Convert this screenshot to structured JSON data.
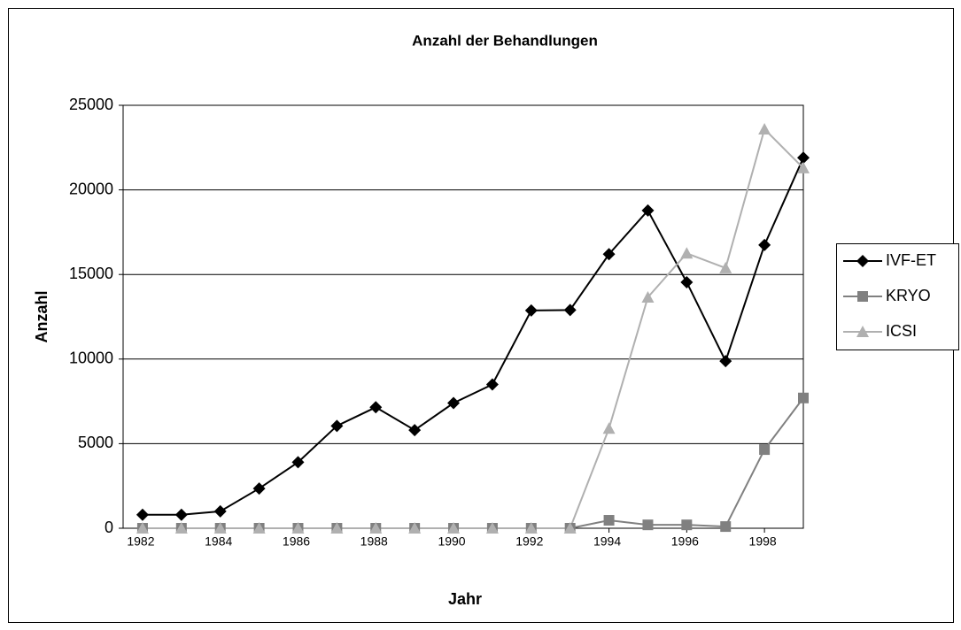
{
  "chart_data": {
    "type": "line",
    "title": "Anzahl der Behandlungen",
    "xlabel": "Jahr",
    "ylabel": "Anzahl",
    "x": [
      1982,
      1983,
      1984,
      1985,
      1986,
      1987,
      1988,
      1989,
      1990,
      1991,
      1992,
      1993,
      1994,
      1995,
      1996,
      1997,
      1998,
      1999
    ],
    "xlim": [
      1981.5,
      1999
    ],
    "xticks": [
      1982,
      1984,
      1986,
      1988,
      1990,
      1992,
      1994,
      1996,
      1998
    ],
    "ylim": [
      0,
      25000
    ],
    "yticks": [
      0,
      5000,
      10000,
      15000,
      20000,
      25000
    ],
    "grid": true,
    "legend": "right",
    "series": [
      {
        "name": "IVF-ET",
        "color": "#000000",
        "marker": "diamond",
        "values": [
          800,
          800,
          1000,
          2350,
          3900,
          6050,
          7150,
          5800,
          7400,
          8500,
          12870,
          12900,
          16200,
          18780,
          14540,
          9880,
          16740,
          21900
        ]
      },
      {
        "name": "KRYO",
        "color": "#808080",
        "marker": "square",
        "values": [
          0,
          0,
          0,
          0,
          0,
          0,
          0,
          0,
          0,
          0,
          0,
          0,
          470,
          200,
          200,
          100,
          4650,
          7700
        ]
      },
      {
        "name": "ICSI",
        "color": "#b0b0b0",
        "marker": "triangle",
        "values": [
          0,
          0,
          0,
          0,
          0,
          0,
          0,
          0,
          0,
          0,
          0,
          0,
          5900,
          13650,
          16250,
          15380,
          23590,
          21290
        ]
      }
    ]
  }
}
